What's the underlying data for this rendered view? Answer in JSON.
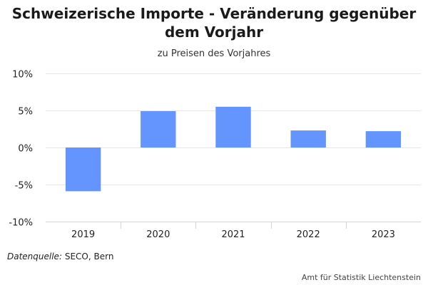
{
  "chart_data": {
    "type": "bar",
    "title": "Schweizerische Importe - Veränderung gegenüber dem Vorjahr",
    "subtitle": "zu Preisen des Vorjahres",
    "categories": [
      "2019",
      "2020",
      "2021",
      "2022",
      "2023"
    ],
    "values": [
      -5.9,
      4.9,
      5.5,
      2.3,
      2.2
    ],
    "ylim": [
      -10,
      10
    ],
    "yticks": [
      10,
      5,
      0,
      -5,
      -10
    ],
    "ytick_labels": [
      "10%",
      "5%",
      "0%",
      "-5%",
      "-10%"
    ],
    "xlabel": "",
    "ylabel": "",
    "grid": true,
    "bar_color": "#6495ff",
    "grid_color": "#e6e6e6",
    "axis_color": "#ccd6eb"
  },
  "source": {
    "label": "Datenquelle:",
    "value": "SECO, Bern"
  },
  "credit": "Amt für Statistik Liechtenstein"
}
